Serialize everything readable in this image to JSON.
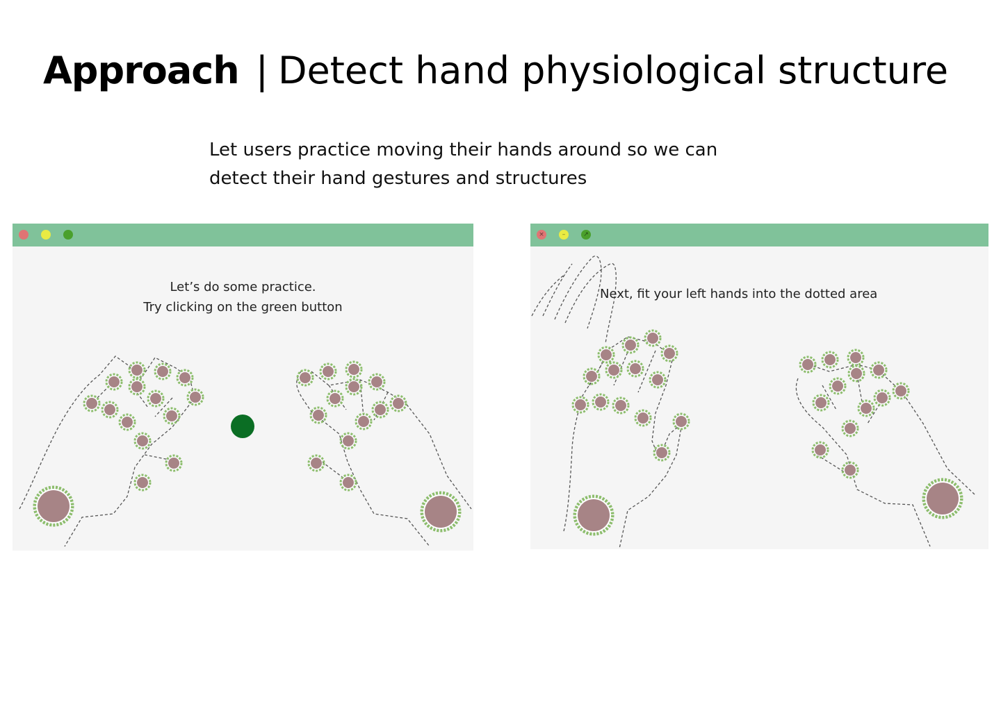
{
  "header": {
    "title_bold": "Approach",
    "separator": "|",
    "title_rest": "Detect hand physiological structure"
  },
  "description": {
    "line1": "Let users practice moving their hands around so we can",
    "line2": "detect their hand gestures and structures"
  },
  "colors": {
    "titlebar": "#80c29a",
    "window_bg": "#f5f5f5",
    "close": "#e07474",
    "minimize": "#eaeb43",
    "maximize": "#4aa02c",
    "target_button": "#0b6e24",
    "dot_fill": "#a78486",
    "dot_ring": "#8cbd6c"
  },
  "window_left": {
    "controls": {
      "close_icon": "close-icon",
      "minimize_icon": "minimize-icon",
      "maximize_icon": "maximize-icon"
    },
    "prompt_line1": "Let’s do some practice.",
    "prompt_line2": "Try clicking on the green button"
  },
  "window_right": {
    "controls": {
      "close_icon": "close-icon",
      "close_glyph": "×",
      "minimize_icon": "minimize-icon",
      "minimize_glyph": "–",
      "maximize_icon": "maximize-icon",
      "maximize_glyph": "↗"
    },
    "prompt": "Next, fit your left hands into the dotted area"
  }
}
